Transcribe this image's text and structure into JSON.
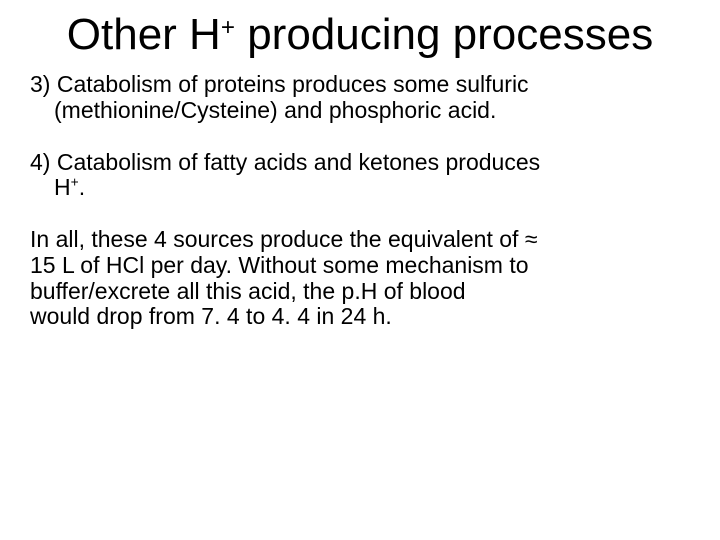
{
  "title_pre": "Other H",
  "title_sup": "+",
  "title_post": " producing processes",
  "p3_a": "3) Catabolism of proteins produces some sulfuric",
  "p3_b": "(methionine/Cysteine) and phosphoric acid.",
  "p4_a": "4) Catabolism of fatty acids and ketones produces",
  "p4_b_pre": "H",
  "p4_b_sup": "+",
  "p4_b_post": ".",
  "summary_l1": "In all, these 4 sources produce the equivalent of ≈",
  "summary_l2": "15 L of HCl per day. Without some mechanism to",
  "summary_l3": "buffer/excrete all this acid, the p.H of blood",
  "summary_l4": "would drop from 7. 4 to 4. 4 in 24 h."
}
